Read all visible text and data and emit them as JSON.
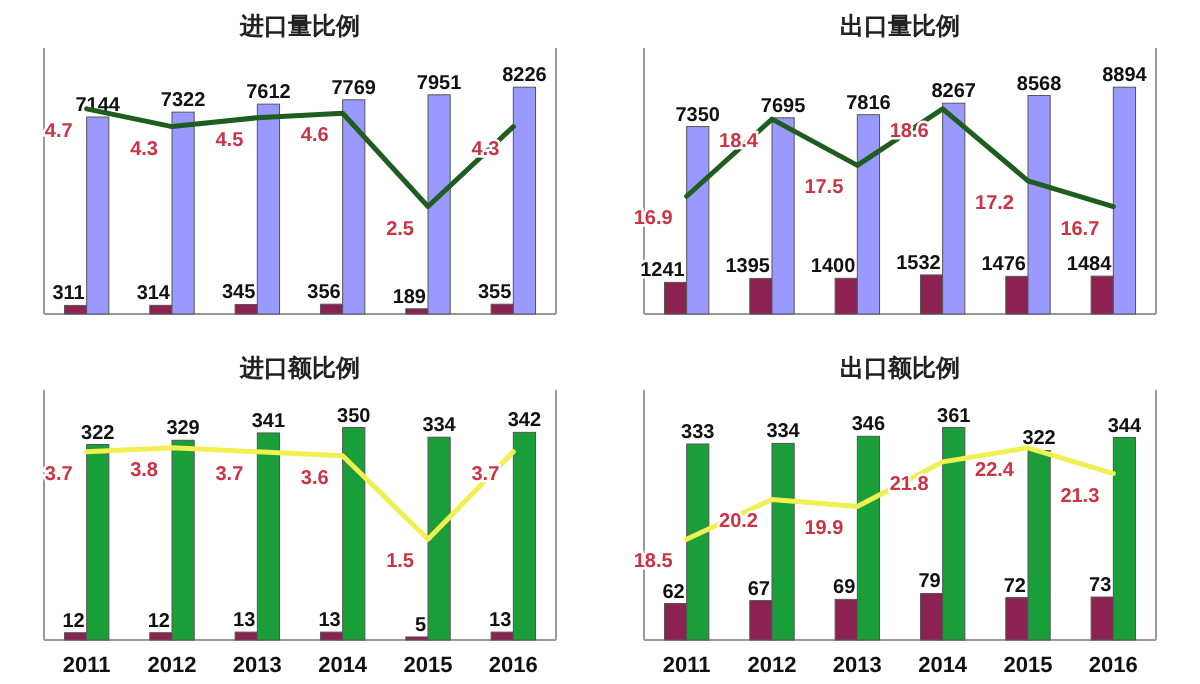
{
  "chart_data": [
    {
      "type": "bar",
      "title": "进口量比例",
      "categories": [
        "2011",
        "2012",
        "2013",
        "2014",
        "2015",
        "2016"
      ],
      "tick_labels": false,
      "data_labels": true,
      "series": [
        {
          "color": "#8b2252",
          "values": [
            311,
            314,
            345,
            356,
            189,
            355
          ]
        },
        {
          "color": "#9999ff",
          "values": [
            7144,
            7322,
            7612,
            7769,
            7951,
            8226
          ]
        },
        {
          "type": "line",
          "axis": "y2",
          "color": "#1f5c1f",
          "values": [
            4.7,
            4.3,
            4.5,
            4.6,
            2.5,
            4.3
          ]
        }
      ]
    },
    {
      "type": "bar",
      "title": "出口量比例",
      "categories": [
        "2011",
        "2012",
        "2013",
        "2014",
        "2015",
        "2016"
      ],
      "tick_labels": false,
      "data_labels": true,
      "series": [
        {
          "color": "#8b2252",
          "values": [
            1241,
            1395,
            1400,
            1532,
            1476,
            1484
          ]
        },
        {
          "color": "#9999ff",
          "values": [
            7350,
            7695,
            7816,
            8267,
            8568,
            8894
          ]
        },
        {
          "type": "line",
          "axis": "y2",
          "color": "#1f5c1f",
          "values": [
            16.9,
            18.4,
            17.5,
            18.6,
            17.2,
            16.7
          ]
        }
      ]
    },
    {
      "type": "bar",
      "title": "进口额比例",
      "categories": [
        "2011",
        "2012",
        "2013",
        "2014",
        "2015",
        "2016"
      ],
      "tick_labels": "x",
      "data_labels": true,
      "series": [
        {
          "color": "#8b2252",
          "values": [
            12,
            12,
            13,
            13,
            5,
            13
          ]
        },
        {
          "color": "#1a9e3a",
          "values": [
            322,
            329,
            341,
            350,
            334,
            342
          ]
        },
        {
          "type": "line",
          "axis": "y2",
          "color": "#f0f050",
          "values": [
            3.7,
            3.8,
            3.7,
            3.6,
            1.5,
            3.7
          ]
        }
      ]
    },
    {
      "type": "bar",
      "title": "出口额比例",
      "categories": [
        "2011",
        "2012",
        "2013",
        "2014",
        "2015",
        "2016"
      ],
      "tick_labels": "x",
      "data_labels": true,
      "series": [
        {
          "color": "#8b2252",
          "values": [
            62,
            67,
            69,
            79,
            72,
            73
          ]
        },
        {
          "color": "#1a9e3a",
          "values": [
            333,
            334,
            346,
            361,
            322,
            344
          ]
        },
        {
          "type": "line",
          "axis": "y2",
          "color": "#f0f050",
          "values": [
            18.5,
            20.2,
            19.9,
            21.8,
            22.4,
            21.3
          ]
        }
      ]
    }
  ]
}
